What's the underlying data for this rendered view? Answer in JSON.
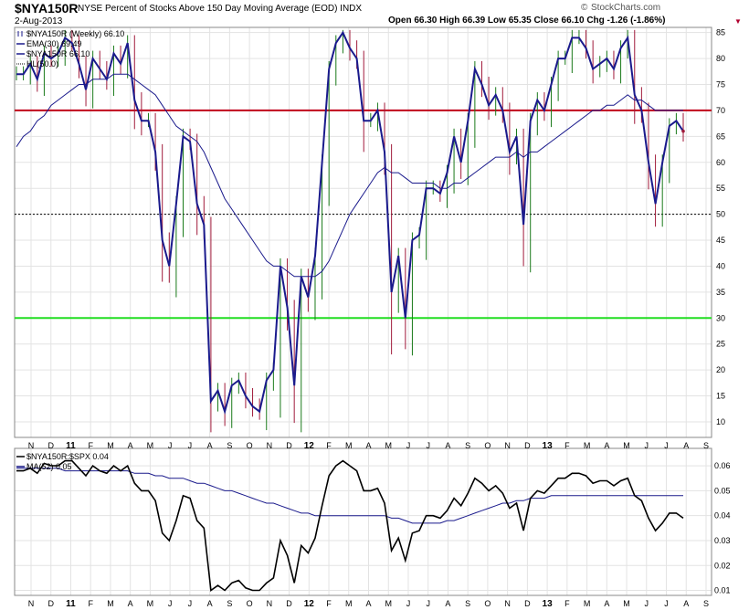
{
  "header": {
    "symbol": "$NYA150R",
    "description": "NYSE Percent of Stocks Above 150 Day Moving Average (EOD)  INDX",
    "date": "2-Aug-2013",
    "brand": "StockCharts.com",
    "quote": "Open 66.30   High 66.39   Low 65.35   Close 66.10   Chg -1.26 (-1.86%)"
  },
  "colors": {
    "price": "#1a1a8c",
    "ema": "#1a1a8c",
    "resistance": "#c0001a",
    "support": "#22dd22",
    "ratio": "#000000",
    "ma52": "#1a1a8c",
    "up_bar": "#1a7a1a",
    "down_bar": "#a01a3a"
  },
  "x_axis_labels": [
    "N",
    "D",
    "11",
    "F",
    "M",
    "A",
    "M",
    "J",
    "J",
    "A",
    "S",
    "O",
    "N",
    "D",
    "12",
    "F",
    "M",
    "A",
    "M",
    "J",
    "J",
    "A",
    "S",
    "O",
    "N",
    "D",
    "13",
    "F",
    "M",
    "A",
    "M",
    "J",
    "J",
    "A",
    "S"
  ],
  "chart_data": [
    {
      "type": "line",
      "panel": "main",
      "title": "$NYA150R (Weekly) 66.10",
      "ylim": [
        7,
        86
      ],
      "y_ticks": [
        10,
        15,
        20,
        25,
        30,
        35,
        40,
        45,
        50,
        55,
        60,
        65,
        70,
        75,
        80,
        85
      ],
      "legend": [
        "$NYA150R (Weekly) 66.10",
        "EMA(30) 69.49",
        "$NYA150R  66.10",
        "HL(50.0)"
      ],
      "reference_lines": [
        70,
        30,
        50
      ],
      "series": [
        {
          "name": "$NYA150R",
          "values": [
            77,
            77,
            79,
            76,
            81,
            80,
            81,
            84,
            83,
            79,
            74,
            80,
            78,
            76,
            81,
            79,
            83,
            72,
            68,
            68,
            62,
            45,
            40,
            52,
            65,
            64,
            52,
            48,
            14,
            16,
            12,
            17,
            18,
            15,
            13,
            12,
            18,
            20,
            40,
            32,
            17,
            38,
            34,
            42,
            60,
            78,
            83,
            85,
            82,
            80,
            68,
            68,
            70,
            62,
            35,
            42,
            30,
            45,
            46,
            55,
            55,
            54,
            58,
            65,
            60,
            68,
            78,
            75,
            71,
            73,
            70,
            62,
            65,
            48,
            68,
            72,
            70,
            75,
            80,
            80,
            84,
            84,
            82,
            78,
            79,
            80,
            78,
            82,
            84,
            73,
            70,
            60,
            52,
            60,
            67,
            68,
            66
          ]
        },
        {
          "name": "EMA(30)",
          "values": [
            63,
            65,
            66,
            68,
            69,
            71,
            72,
            73,
            74,
            75,
            75,
            76,
            76,
            76,
            77,
            77,
            77,
            76,
            75,
            74,
            73,
            71,
            69,
            67,
            66,
            65,
            64,
            62,
            59,
            56,
            53,
            51,
            49,
            47,
            45,
            43,
            41,
            40,
            40,
            39,
            38,
            38,
            38,
            38,
            39,
            41,
            44,
            47,
            50,
            52,
            54,
            56,
            58,
            59,
            58,
            58,
            57,
            56,
            56,
            56,
            56,
            55,
            55,
            56,
            56,
            57,
            58,
            59,
            60,
            61,
            61,
            61,
            62,
            61,
            62,
            62,
            63,
            64,
            65,
            66,
            67,
            68,
            69,
            70,
            70,
            71,
            71,
            72,
            73,
            72,
            72,
            71,
            70,
            70,
            70,
            70,
            70
          ]
        }
      ]
    },
    {
      "type": "line",
      "panel": "ratio",
      "ylim": [
        0.008,
        0.067
      ],
      "y_ticks": [
        0.01,
        0.02,
        0.03,
        0.04,
        0.05,
        0.06
      ],
      "legend": [
        "$NYA150R:$SPX  0.04",
        "MA(52) 0.05"
      ],
      "series": [
        {
          "name": "$NYA150R:$SPX",
          "values": [
            0.058,
            0.058,
            0.059,
            0.057,
            0.061,
            0.06,
            0.06,
            0.062,
            0.062,
            0.059,
            0.056,
            0.06,
            0.058,
            0.057,
            0.06,
            0.058,
            0.06,
            0.053,
            0.05,
            0.05,
            0.046,
            0.033,
            0.03,
            0.038,
            0.048,
            0.047,
            0.038,
            0.035,
            0.01,
            0.012,
            0.01,
            0.013,
            0.014,
            0.011,
            0.01,
            0.01,
            0.013,
            0.015,
            0.03,
            0.024,
            0.013,
            0.028,
            0.025,
            0.031,
            0.044,
            0.056,
            0.06,
            0.062,
            0.06,
            0.058,
            0.05,
            0.05,
            0.051,
            0.045,
            0.026,
            0.031,
            0.022,
            0.033,
            0.034,
            0.04,
            0.04,
            0.039,
            0.042,
            0.047,
            0.044,
            0.049,
            0.055,
            0.053,
            0.05,
            0.052,
            0.049,
            0.043,
            0.045,
            0.034,
            0.047,
            0.05,
            0.049,
            0.052,
            0.055,
            0.055,
            0.057,
            0.057,
            0.056,
            0.053,
            0.054,
            0.054,
            0.052,
            0.054,
            0.055,
            0.048,
            0.046,
            0.039,
            0.034,
            0.037,
            0.041,
            0.041,
            0.039
          ]
        },
        {
          "name": "MA(52)",
          "values": [
            0.059,
            0.059,
            0.059,
            0.059,
            0.059,
            0.059,
            0.059,
            0.058,
            0.058,
            0.058,
            0.058,
            0.058,
            0.058,
            0.058,
            0.058,
            0.058,
            0.058,
            0.057,
            0.057,
            0.057,
            0.056,
            0.056,
            0.055,
            0.055,
            0.055,
            0.054,
            0.053,
            0.053,
            0.052,
            0.051,
            0.05,
            0.05,
            0.049,
            0.048,
            0.047,
            0.046,
            0.045,
            0.045,
            0.044,
            0.043,
            0.042,
            0.041,
            0.041,
            0.04,
            0.04,
            0.04,
            0.04,
            0.04,
            0.04,
            0.04,
            0.04,
            0.04,
            0.04,
            0.04,
            0.039,
            0.039,
            0.038,
            0.037,
            0.037,
            0.037,
            0.037,
            0.037,
            0.038,
            0.038,
            0.039,
            0.04,
            0.041,
            0.042,
            0.043,
            0.044,
            0.045,
            0.045,
            0.046,
            0.046,
            0.047,
            0.047,
            0.047,
            0.048,
            0.048,
            0.048,
            0.048,
            0.048,
            0.048,
            0.048,
            0.048,
            0.048,
            0.048,
            0.048,
            0.048,
            0.048,
            0.048,
            0.048,
            0.048,
            0.048,
            0.048,
            0.048,
            0.048
          ]
        }
      ]
    }
  ]
}
